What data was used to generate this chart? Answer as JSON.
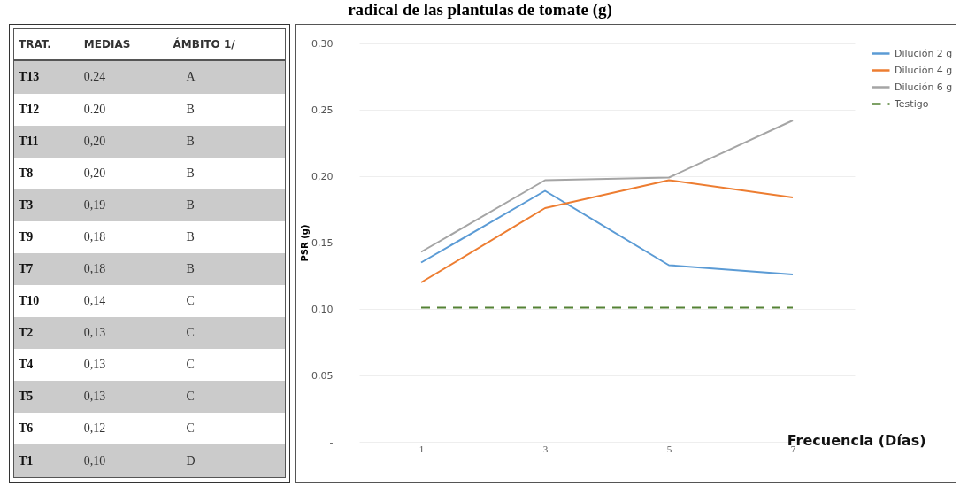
{
  "chart_data": [
    {
      "type": "other",
      "categories": [
        "TRAT.",
        "MEDIAS",
        "ÁMBITO 1/"
      ],
      "annotations": [
        "T13",
        "0.24",
        "A",
        "T12",
        "0.20",
        "B",
        "T11",
        "0,20",
        "B",
        "T8",
        "0,20",
        "B",
        "T3",
        "0,19",
        "B",
        "T9",
        "0,18",
        "B",
        "T7",
        "0,18",
        "B",
        "T10",
        "0,14",
        "C",
        "T2",
        "0,13",
        "C",
        "T4",
        "0,13",
        "C",
        "T5",
        "0,13",
        "C",
        "T6",
        "0,12",
        "C",
        "T1",
        "0,10",
        "D"
      ]
    },
    {
      "type": "line",
      "title": "radical de las plantulas de tomate (g)",
      "xlabel": "Frecuencia (Días)",
      "ylabel": "PSR (g)",
      "categories": [
        "1",
        "3",
        "5",
        "7"
      ],
      "series": [
        {
          "name": "Dilución 2 g",
          "color": "#5b9bd5",
          "values": [
            0.135,
            0.189,
            0.133,
            0.126
          ]
        },
        {
          "name": "Dilución 4 g",
          "color": "#ed7d31",
          "values": [
            0.12,
            0.176,
            0.197,
            0.184
          ]
        },
        {
          "name": "Dilución 6 g",
          "color": "#a5a5a5",
          "values": [
            0.143,
            0.197,
            0.199,
            0.242
          ]
        },
        {
          "name": "Testigo",
          "color": "#548235",
          "line_style": "dashed",
          "values": [
            0.101,
            0.101,
            0.101,
            0.101
          ]
        }
      ],
      "ylim": [
        0,
        0.3
      ],
      "yticks": [
        {
          "value": 0,
          "label": "-"
        },
        {
          "value": 0.05,
          "label": "0,05"
        },
        {
          "value": 0.1,
          "label": "0,10"
        },
        {
          "value": 0.15,
          "label": "0,15"
        },
        {
          "value": 0.2,
          "label": "0,20"
        },
        {
          "value": 0.25,
          "label": "0,25"
        },
        {
          "value": 0.3,
          "label": "0,30"
        }
      ],
      "grid": "y",
      "legend": "right",
      "line_style": "solid"
    }
  ]
}
